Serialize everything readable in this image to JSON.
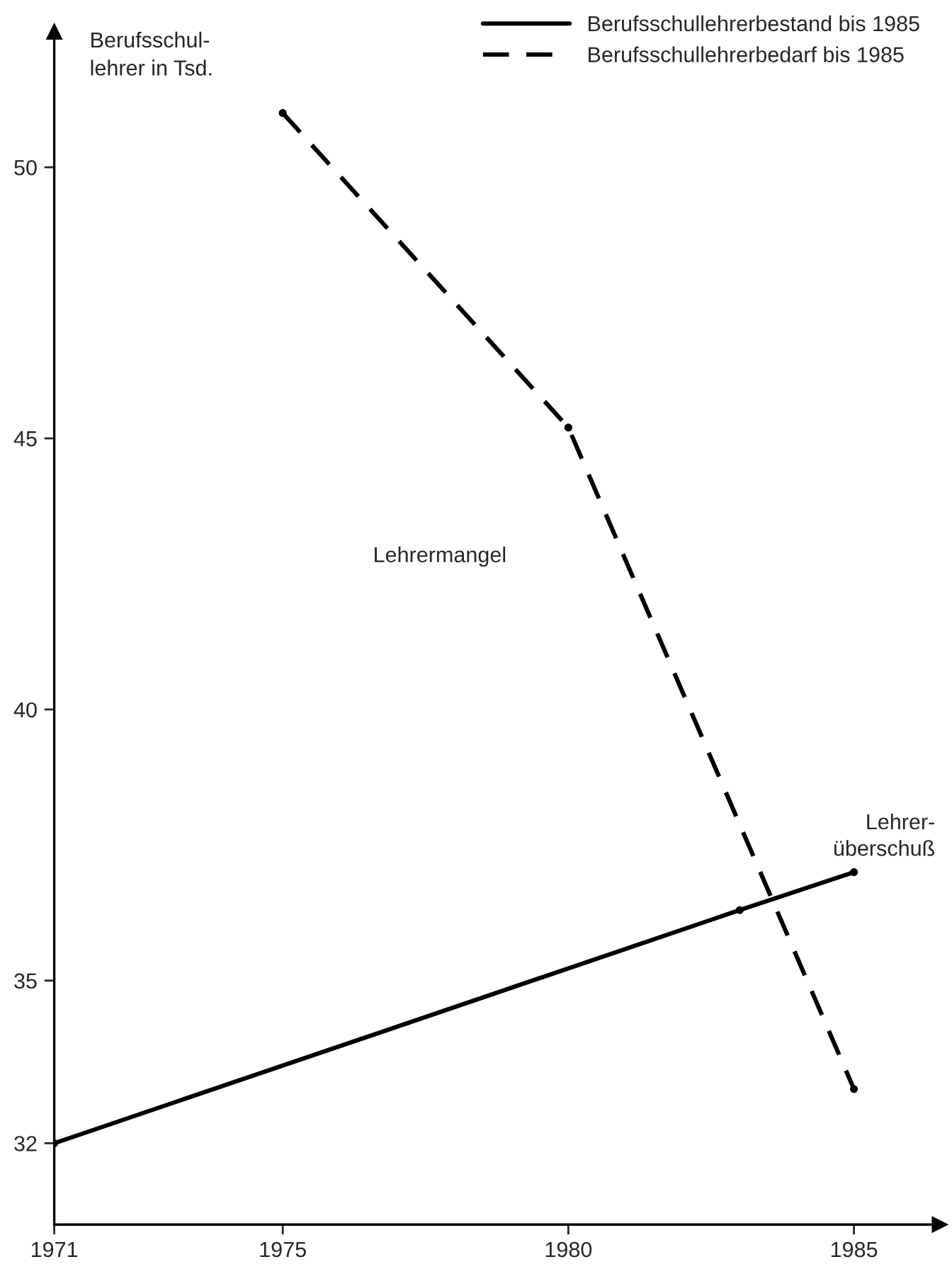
{
  "chart_data": {
    "type": "line",
    "ylabel": "Berufsschul-\nlehrer in Tsd.",
    "series": [
      {
        "name": "Berufsschullehrerbestand bis 1985",
        "color": "#000000",
        "line_style": "solid",
        "x": [
          1971,
          1983,
          1985
        ],
        "values": [
          32.0,
          36.3,
          37.0
        ]
      },
      {
        "name": "Berufsschullehrerbedarf bis 1985",
        "color": "#000000",
        "line_style": "dashed",
        "x": [
          1975,
          1980,
          1985
        ],
        "values": [
          51.0,
          45.2,
          33.0
        ]
      }
    ],
    "xlim": [
      1971,
      1986.5
    ],
    "xticks": [
      1971,
      1975,
      1980,
      1985
    ],
    "ylim": [
      30.5,
      52.5
    ],
    "yticks": [
      32,
      35,
      40,
      45,
      50
    ],
    "marker": "circle",
    "grid": false,
    "legend": "top right",
    "annotations": [
      "Lehrermangel",
      "Lehrer-\nüberschuß"
    ]
  }
}
